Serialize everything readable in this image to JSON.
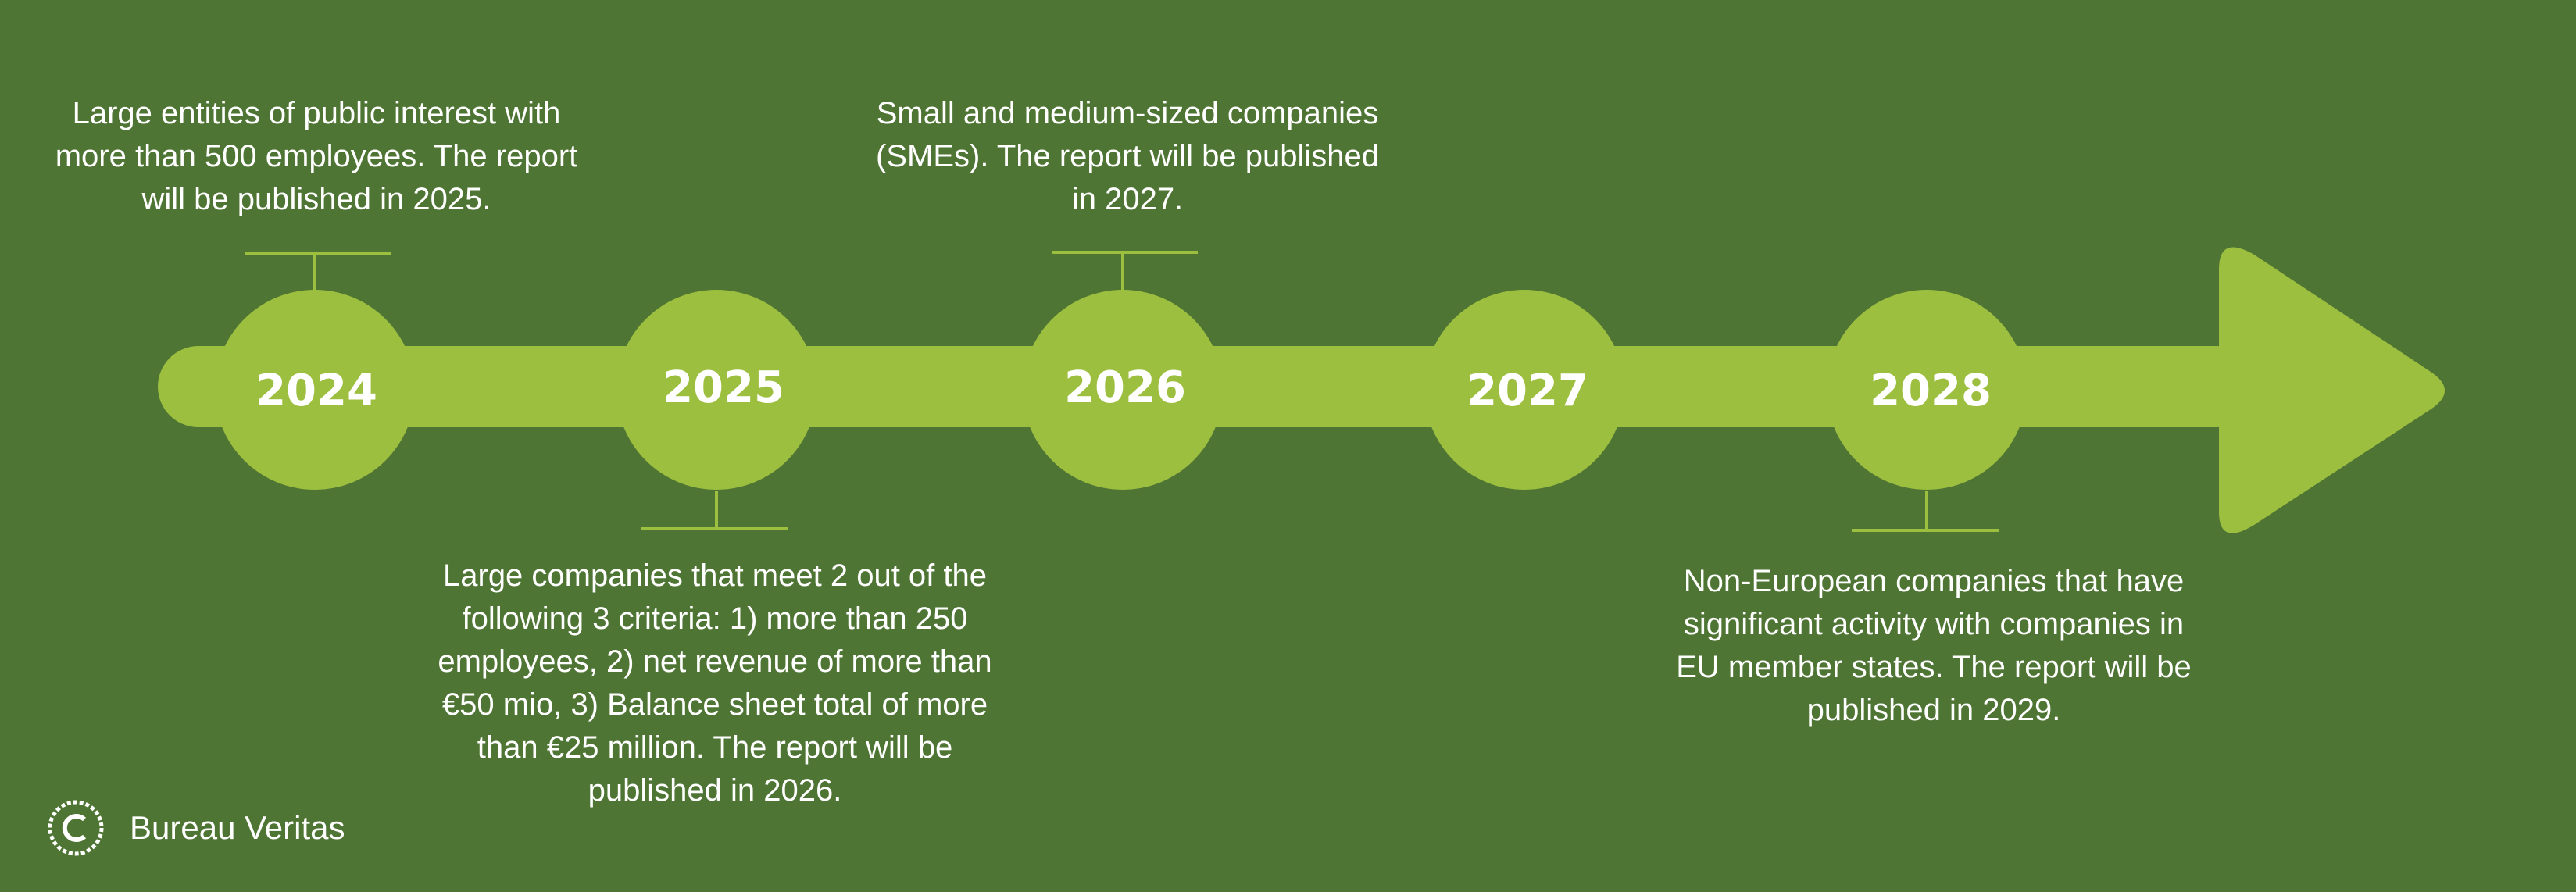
{
  "timeline": {
    "years": [
      {
        "label": "2024",
        "position": "above",
        "description": "Large entities of public interest with\nmore than 500 employees. The report\nwill be published in 2025."
      },
      {
        "label": "2025",
        "position": "below",
        "description": "Large companies that meet 2 out of the\nfollowing 3 criteria: 1) more than 250\nemployees, 2) net revenue of more than\n€50 mio, 3) Balance sheet total of more\nthan €25 million. The report will be\npublished in 2026."
      },
      {
        "label": "2026",
        "position": "above",
        "description": "Small and medium-sized companies\n(SMEs). The report will be published\nin 2027."
      },
      {
        "label": "2027",
        "position": "none",
        "description": ""
      },
      {
        "label": "2028",
        "position": "below",
        "description": "Non-European companies that have\nsignificant activity with companies in\nEU member states. The report will be\npublished in 2029."
      }
    ]
  },
  "footer": {
    "copyright_text": "Bureau Veritas"
  },
  "colors": {
    "background": "#4f7534",
    "timeline": "#9dbf3f",
    "text": "#ffffff"
  }
}
